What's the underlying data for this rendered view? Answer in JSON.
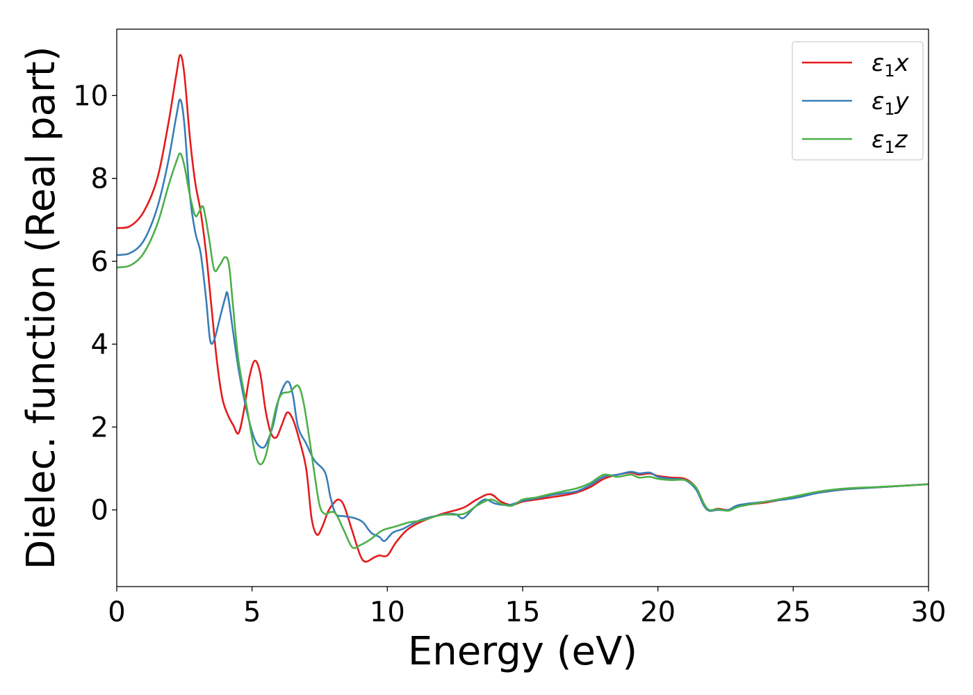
{
  "chart_data": {
    "type": "line",
    "xlabel": "Energy (eV)",
    "ylabel": "Dielec. function (Real part)",
    "xlim": [
      0,
      30
    ],
    "ylim": [
      -1.85,
      11.6
    ],
    "xticks": [
      0,
      5,
      10,
      15,
      20,
      25,
      30
    ],
    "yticks": [
      0,
      2,
      4,
      6,
      8,
      10
    ],
    "grid": false,
    "legend_position": "top-right",
    "series": [
      {
        "name": "ε1x",
        "legend": {
          "base": "ε",
          "sub": "1",
          "suffix": "x"
        },
        "color": "#e41a1c",
        "points": [
          [
            0,
            6.8
          ],
          [
            0.5,
            6.85
          ],
          [
            1.0,
            7.2
          ],
          [
            1.5,
            8.0
          ],
          [
            1.9,
            9.3
          ],
          [
            2.2,
            10.5
          ],
          [
            2.35,
            10.98
          ],
          [
            2.5,
            10.5
          ],
          [
            2.7,
            9.0
          ],
          [
            2.9,
            7.9
          ],
          [
            3.1,
            7.2
          ],
          [
            3.3,
            6.2
          ],
          [
            3.5,
            4.9
          ],
          [
            3.7,
            3.6
          ],
          [
            3.9,
            2.7
          ],
          [
            4.1,
            2.3
          ],
          [
            4.3,
            2.05
          ],
          [
            4.5,
            1.85
          ],
          [
            4.7,
            2.4
          ],
          [
            4.9,
            3.2
          ],
          [
            5.1,
            3.6
          ],
          [
            5.3,
            3.3
          ],
          [
            5.5,
            2.4
          ],
          [
            5.7,
            1.85
          ],
          [
            5.9,
            1.75
          ],
          [
            6.1,
            2.05
          ],
          [
            6.3,
            2.35
          ],
          [
            6.5,
            2.2
          ],
          [
            6.7,
            1.8
          ],
          [
            7.0,
            1.0
          ],
          [
            7.2,
            -0.2
          ],
          [
            7.4,
            -0.6
          ],
          [
            7.6,
            -0.4
          ],
          [
            7.8,
            -0.05
          ],
          [
            8.0,
            0.15
          ],
          [
            8.2,
            0.25
          ],
          [
            8.4,
            0.1
          ],
          [
            8.7,
            -0.5
          ],
          [
            9.0,
            -1.1
          ],
          [
            9.2,
            -1.25
          ],
          [
            9.5,
            -1.15
          ],
          [
            9.7,
            -1.1
          ],
          [
            10.0,
            -1.1
          ],
          [
            10.3,
            -0.8
          ],
          [
            10.7,
            -0.5
          ],
          [
            11.2,
            -0.3
          ],
          [
            12.0,
            -0.1
          ],
          [
            12.8,
            0.05
          ],
          [
            13.3,
            0.25
          ],
          [
            13.8,
            0.38
          ],
          [
            14.2,
            0.2
          ],
          [
            14.6,
            0.12
          ],
          [
            15.0,
            0.2
          ],
          [
            15.5,
            0.25
          ],
          [
            16.0,
            0.3
          ],
          [
            16.5,
            0.35
          ],
          [
            17.0,
            0.42
          ],
          [
            17.5,
            0.55
          ],
          [
            18.0,
            0.75
          ],
          [
            18.5,
            0.85
          ],
          [
            19.0,
            0.9
          ],
          [
            19.3,
            0.85
          ],
          [
            19.7,
            0.88
          ],
          [
            20.0,
            0.82
          ],
          [
            20.5,
            0.78
          ],
          [
            21.0,
            0.75
          ],
          [
            21.4,
            0.55
          ],
          [
            21.7,
            0.15
          ],
          [
            21.9,
            -0.02
          ],
          [
            22.2,
            0.03
          ],
          [
            22.6,
            0.0
          ],
          [
            23.0,
            0.1
          ],
          [
            24.0,
            0.18
          ],
          [
            25.0,
            0.3
          ],
          [
            26.0,
            0.42
          ],
          [
            27.0,
            0.5
          ],
          [
            28.0,
            0.54
          ],
          [
            29.0,
            0.58
          ],
          [
            30.0,
            0.62
          ]
        ]
      },
      {
        "name": "ε1y",
        "legend": {
          "base": "ε",
          "sub": "1",
          "suffix": "y"
        },
        "color": "#377eb8",
        "points": [
          [
            0,
            6.15
          ],
          [
            0.5,
            6.2
          ],
          [
            1.0,
            6.5
          ],
          [
            1.5,
            7.3
          ],
          [
            1.9,
            8.4
          ],
          [
            2.2,
            9.5
          ],
          [
            2.35,
            9.9
          ],
          [
            2.5,
            9.3
          ],
          [
            2.7,
            7.6
          ],
          [
            2.9,
            6.7
          ],
          [
            3.1,
            6.2
          ],
          [
            3.3,
            5.1
          ],
          [
            3.45,
            4.1
          ],
          [
            3.6,
            4.1
          ],
          [
            3.8,
            4.6
          ],
          [
            4.0,
            5.1
          ],
          [
            4.1,
            5.2
          ],
          [
            4.3,
            4.3
          ],
          [
            4.5,
            3.4
          ],
          [
            4.8,
            2.4
          ],
          [
            5.1,
            1.7
          ],
          [
            5.4,
            1.5
          ],
          [
            5.6,
            1.7
          ],
          [
            5.8,
            2.1
          ],
          [
            6.0,
            2.7
          ],
          [
            6.3,
            3.1
          ],
          [
            6.5,
            2.8
          ],
          [
            6.7,
            2.0
          ],
          [
            7.0,
            1.6
          ],
          [
            7.3,
            1.2
          ],
          [
            7.7,
            0.9
          ],
          [
            7.9,
            0.3
          ],
          [
            8.1,
            -0.1
          ],
          [
            8.4,
            -0.15
          ],
          [
            8.8,
            -0.2
          ],
          [
            9.1,
            -0.3
          ],
          [
            9.4,
            -0.55
          ],
          [
            9.7,
            -0.65
          ],
          [
            9.9,
            -0.75
          ],
          [
            10.2,
            -0.55
          ],
          [
            10.6,
            -0.45
          ],
          [
            11.2,
            -0.25
          ],
          [
            12.0,
            -0.12
          ],
          [
            12.5,
            -0.1
          ],
          [
            12.8,
            -0.2
          ],
          [
            13.2,
            0.05
          ],
          [
            13.6,
            0.25
          ],
          [
            14.0,
            0.15
          ],
          [
            14.5,
            0.12
          ],
          [
            15.0,
            0.22
          ],
          [
            15.5,
            0.28
          ],
          [
            16.0,
            0.35
          ],
          [
            16.5,
            0.4
          ],
          [
            17.0,
            0.45
          ],
          [
            17.5,
            0.6
          ],
          [
            18.0,
            0.8
          ],
          [
            18.5,
            0.85
          ],
          [
            19.0,
            0.92
          ],
          [
            19.3,
            0.88
          ],
          [
            19.7,
            0.9
          ],
          [
            20.0,
            0.8
          ],
          [
            20.5,
            0.75
          ],
          [
            21.0,
            0.72
          ],
          [
            21.4,
            0.5
          ],
          [
            21.7,
            0.1
          ],
          [
            21.9,
            -0.02
          ],
          [
            22.2,
            0.0
          ],
          [
            22.6,
            0.0
          ],
          [
            23.0,
            0.12
          ],
          [
            24.0,
            0.2
          ],
          [
            25.0,
            0.28
          ],
          [
            26.0,
            0.42
          ],
          [
            27.0,
            0.5
          ],
          [
            28.0,
            0.54
          ],
          [
            29.0,
            0.58
          ],
          [
            30.0,
            0.62
          ]
        ]
      },
      {
        "name": "ε1z",
        "legend": {
          "base": "ε",
          "sub": "1",
          "suffix": "z"
        },
        "color": "#4daf4a",
        "points": [
          [
            0,
            5.85
          ],
          [
            0.5,
            5.9
          ],
          [
            1.0,
            6.2
          ],
          [
            1.5,
            6.9
          ],
          [
            1.9,
            7.8
          ],
          [
            2.2,
            8.4
          ],
          [
            2.35,
            8.6
          ],
          [
            2.5,
            8.3
          ],
          [
            2.7,
            7.6
          ],
          [
            2.9,
            7.1
          ],
          [
            3.05,
            7.2
          ],
          [
            3.2,
            7.3
          ],
          [
            3.4,
            6.6
          ],
          [
            3.6,
            5.8
          ],
          [
            3.8,
            5.9
          ],
          [
            4.0,
            6.1
          ],
          [
            4.15,
            5.9
          ],
          [
            4.3,
            4.9
          ],
          [
            4.5,
            3.6
          ],
          [
            4.8,
            2.5
          ],
          [
            5.1,
            1.4
          ],
          [
            5.3,
            1.1
          ],
          [
            5.5,
            1.3
          ],
          [
            5.7,
            1.9
          ],
          [
            5.9,
            2.5
          ],
          [
            6.1,
            2.8
          ],
          [
            6.4,
            2.85
          ],
          [
            6.7,
            3.0
          ],
          [
            6.9,
            2.6
          ],
          [
            7.1,
            1.8
          ],
          [
            7.3,
            0.9
          ],
          [
            7.5,
            0.1
          ],
          [
            7.7,
            -0.1
          ],
          [
            7.9,
            -0.05
          ],
          [
            8.1,
            -0.1
          ],
          [
            8.4,
            -0.5
          ],
          [
            8.7,
            -0.9
          ],
          [
            9.0,
            -0.85
          ],
          [
            9.4,
            -0.7
          ],
          [
            9.8,
            -0.5
          ],
          [
            10.3,
            -0.4
          ],
          [
            10.8,
            -0.3
          ],
          [
            11.3,
            -0.25
          ],
          [
            12.0,
            -0.12
          ],
          [
            12.8,
            -0.1
          ],
          [
            13.3,
            0.1
          ],
          [
            13.8,
            0.25
          ],
          [
            14.2,
            0.15
          ],
          [
            14.6,
            0.1
          ],
          [
            15.0,
            0.25
          ],
          [
            15.5,
            0.3
          ],
          [
            16.0,
            0.38
          ],
          [
            16.5,
            0.45
          ],
          [
            17.0,
            0.52
          ],
          [
            17.5,
            0.65
          ],
          [
            18.0,
            0.85
          ],
          [
            18.5,
            0.8
          ],
          [
            19.0,
            0.85
          ],
          [
            19.3,
            0.78
          ],
          [
            19.7,
            0.8
          ],
          [
            20.0,
            0.75
          ],
          [
            20.5,
            0.72
          ],
          [
            21.0,
            0.72
          ],
          [
            21.4,
            0.55
          ],
          [
            21.7,
            0.15
          ],
          [
            21.9,
            0.0
          ],
          [
            22.2,
            0.02
          ],
          [
            22.6,
            -0.02
          ],
          [
            23.0,
            0.08
          ],
          [
            24.0,
            0.2
          ],
          [
            25.0,
            0.32
          ],
          [
            26.0,
            0.45
          ],
          [
            27.0,
            0.52
          ],
          [
            28.0,
            0.55
          ],
          [
            29.0,
            0.58
          ],
          [
            30.0,
            0.62
          ]
        ]
      }
    ]
  }
}
